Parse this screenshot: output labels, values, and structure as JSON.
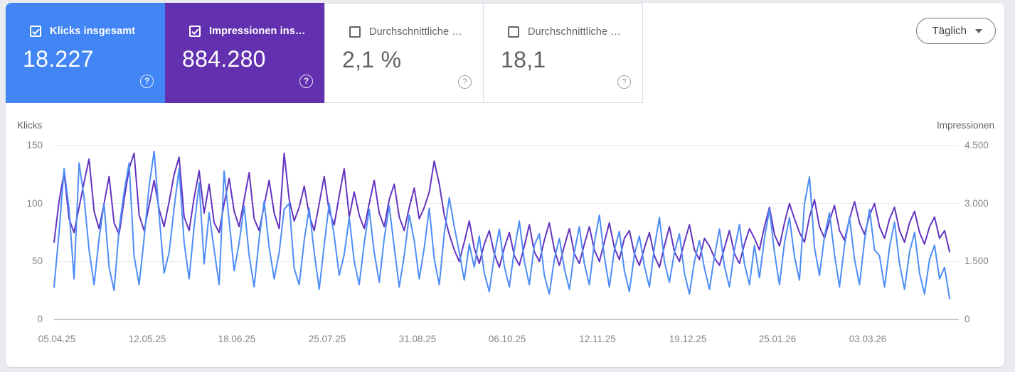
{
  "colors": {
    "blue": "#4285f4",
    "purple": "#6330b0",
    "blue_line": "#4e8df6",
    "purple_line": "#6434c0"
  },
  "cards": [
    {
      "label": "Klicks insgesamt",
      "value": "18.227",
      "checked": true
    },
    {
      "label": "Impressionen ins…",
      "value": "884.280",
      "checked": true
    },
    {
      "label": "Durchschnittliche …",
      "value": "2,1 %",
      "checked": false
    },
    {
      "label": "Durchschnittliche …",
      "value": "18,1",
      "checked": false
    }
  ],
  "granularity_button": {
    "label": "Täglich"
  },
  "icons": {
    "help": "?"
  },
  "chart_data": {
    "type": "line",
    "grid": true,
    "legend_position": "none",
    "left_axis": {
      "label": "Klicks",
      "ticks": [
        "150",
        "100",
        "50",
        "0"
      ],
      "range": [
        0,
        150
      ]
    },
    "right_axis": {
      "label": "Impressionen",
      "ticks": [
        "4.500",
        "3.000",
        "1.500",
        "0"
      ],
      "range": [
        0,
        4500
      ]
    },
    "x_tick_labels": [
      "05.04.25",
      "12.05.25",
      "18.06.25",
      "25.07.25",
      "31.08.25",
      "06.10.25",
      "12.11.25",
      "19.12.25",
      "25.01.26",
      "03.03.26"
    ],
    "series": [
      {
        "name": "Klicks",
        "axis": "left",
        "color": "#4e8df6",
        "values": [
          28,
          75,
          130,
          95,
          35,
          135,
          105,
          60,
          30,
          70,
          100,
          45,
          25,
          78,
          110,
          135,
          55,
          30,
          70,
          115,
          145,
          90,
          40,
          58,
          96,
          130,
          66,
          35,
          80,
          118,
          48,
          92,
          60,
          30,
          128,
          85,
          42,
          66,
          98,
          55,
          28,
          70,
          102,
          62,
          35,
          58,
          95,
          100,
          44,
          30,
          68,
          96,
          58,
          26,
          64,
          100,
          72,
          38,
          56,
          88,
          50,
          30,
          66,
          95,
          58,
          32,
          70,
          98,
          62,
          28,
          55,
          90,
          68,
          35,
          62,
          96,
          52,
          30,
          74,
          105,
          80,
          58,
          34,
          65,
          45,
          72,
          40,
          24,
          55,
          78,
          46,
          28,
          60,
          85,
          50,
          30,
          64,
          74,
          38,
          22,
          52,
          70,
          44,
          26,
          58,
          80,
          48,
          30,
          66,
          90,
          54,
          28,
          60,
          76,
          42,
          24,
          56,
          72,
          46,
          28,
          62,
          88,
          50,
          32,
          58,
          74,
          40,
          22,
          50,
          68,
          44,
          26,
          54,
          78,
          46,
          28,
          60,
          82,
          48,
          30,
          64,
          36,
          70,
          95,
          58,
          30,
          66,
          88,
          54,
          34,
          100,
          123,
          62,
          38,
          72,
          92,
          56,
          28,
          64,
          88,
          52,
          30,
          68,
          95,
          60,
          55,
          28,
          62,
          84,
          48,
          26,
          58,
          75,
          40,
          22,
          52,
          64,
          35,
          45,
          18
        ]
      },
      {
        "name": "Impressionen",
        "axis": "right",
        "color": "#6434c0",
        "values": [
          2000,
          3050,
          3800,
          2600,
          2250,
          2900,
          3550,
          4150,
          2800,
          2350,
          3000,
          3700,
          2500,
          2200,
          3100,
          3900,
          4300,
          2700,
          2300,
          2950,
          3600,
          2850,
          2400,
          3050,
          3750,
          4200,
          2650,
          2300,
          3150,
          3850,
          2750,
          3500,
          2500,
          2250,
          3000,
          3650,
          2800,
          2400,
          3100,
          3800,
          2600,
          2300,
          2950,
          3600,
          2750,
          2350,
          4300,
          3100,
          2550,
          2900,
          3450,
          2700,
          2300,
          3000,
          3700,
          2800,
          2450,
          3200,
          3900,
          2650,
          3300,
          2700,
          2350,
          3000,
          3600,
          2750,
          2400,
          3100,
          3500,
          2650,
          2300,
          2900,
          3400,
          2600,
          2900,
          3300,
          4100,
          3500,
          2700,
          2200,
          1800,
          1500,
          2000,
          2550,
          1850,
          1450,
          1950,
          2300,
          1700,
          1350,
          1850,
          2250,
          1650,
          1400,
          1900,
          2450,
          1750,
          1500,
          2050,
          2500,
          1800,
          1400,
          1900,
          2350,
          1700,
          1450,
          1950,
          2400,
          1800,
          1500,
          2000,
          2500,
          1850,
          1550,
          2100,
          2300,
          1700,
          1400,
          1850,
          2250,
          1650,
          1350,
          1900,
          2400,
          1750,
          1500,
          2000,
          2450,
          1800,
          1550,
          2100,
          1900,
          1600,
          1400,
          1850,
          2300,
          1700,
          1450,
          1950,
          2350,
          2100,
          1800,
          2400,
          2900,
          2200,
          1900,
          2500,
          3000,
          2600,
          2250,
          2000,
          2650,
          3100,
          2400,
          2100,
          2550,
          2950,
          2300,
          2050,
          2600,
          3050,
          2500,
          2200,
          2700,
          3000,
          2400,
          2100,
          2600,
          2900,
          2300,
          2000,
          2500,
          2800,
          2250,
          1950,
          2400,
          2650,
          2100,
          2300,
          1750
        ]
      }
    ]
  }
}
